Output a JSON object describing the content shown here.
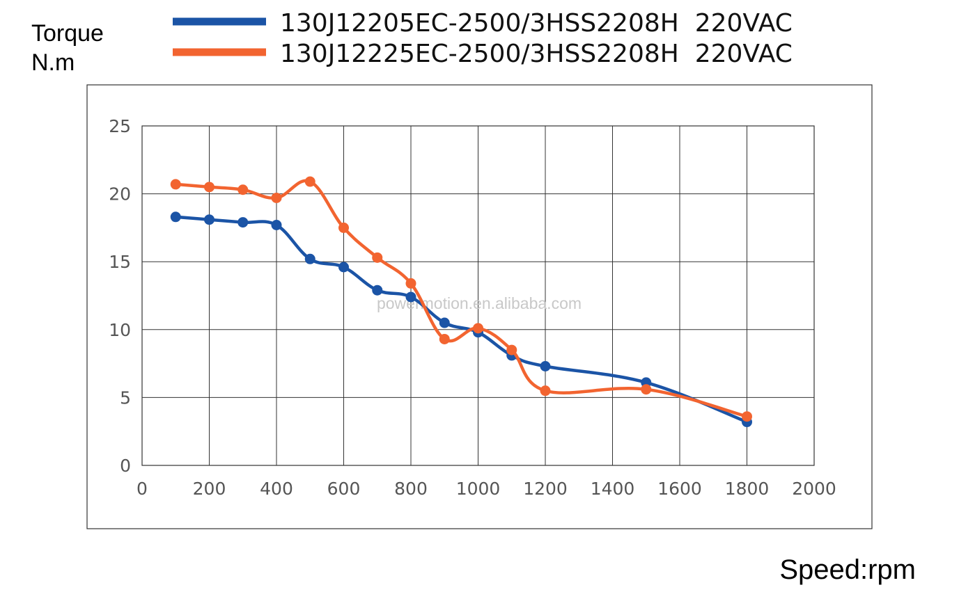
{
  "chart_data": {
    "type": "line",
    "title": "",
    "ylabel_lines": [
      "Torque",
      "N.m"
    ],
    "xlabel": "Speed:rpm",
    "xlim": [
      0,
      2000
    ],
    "ylim": [
      0,
      25
    ],
    "x_ticks": [
      0,
      200,
      400,
      600,
      800,
      1000,
      1200,
      1400,
      1600,
      1800,
      2000
    ],
    "y_ticks": [
      0,
      5,
      10,
      15,
      20,
      25
    ],
    "x_tick_labels": [
      "0",
      "200",
      "400",
      "600",
      "800",
      "1000",
      "1200",
      "1400",
      "1600",
      "1800",
      "2000"
    ],
    "y_tick_labels": [
      "0",
      "5",
      "10",
      "15",
      "20",
      "25"
    ],
    "grid": true,
    "legend_position": "top",
    "watermark": "powermotion.en.alibaba.com",
    "series": [
      {
        "name": "130J12205EC-2500/3HSS2208H  220VAC",
        "color": "#1b54a6",
        "points": [
          [
            100,
            18.3
          ],
          [
            200,
            18.1
          ],
          [
            300,
            17.9
          ],
          [
            400,
            17.7
          ],
          [
            500,
            15.2
          ],
          [
            600,
            14.6
          ],
          [
            700,
            12.9
          ],
          [
            800,
            12.4
          ],
          [
            900,
            10.5
          ],
          [
            1000,
            9.8
          ],
          [
            1100,
            8.1
          ],
          [
            1200,
            7.3
          ],
          [
            1500,
            6.1
          ],
          [
            1800,
            3.2
          ]
        ]
      },
      {
        "name": "130J12225EC-2500/3HSS2208H  220VAC",
        "color": "#f26430",
        "points": [
          [
            100,
            20.7
          ],
          [
            200,
            20.5
          ],
          [
            300,
            20.3
          ],
          [
            400,
            19.7
          ],
          [
            500,
            20.9
          ],
          [
            600,
            17.5
          ],
          [
            700,
            15.3
          ],
          [
            800,
            13.4
          ],
          [
            900,
            9.3
          ],
          [
            1000,
            10.1
          ],
          [
            1100,
            8.5
          ],
          [
            1200,
            5.5
          ],
          [
            1500,
            5.6
          ],
          [
            1800,
            3.6
          ]
        ]
      }
    ]
  }
}
